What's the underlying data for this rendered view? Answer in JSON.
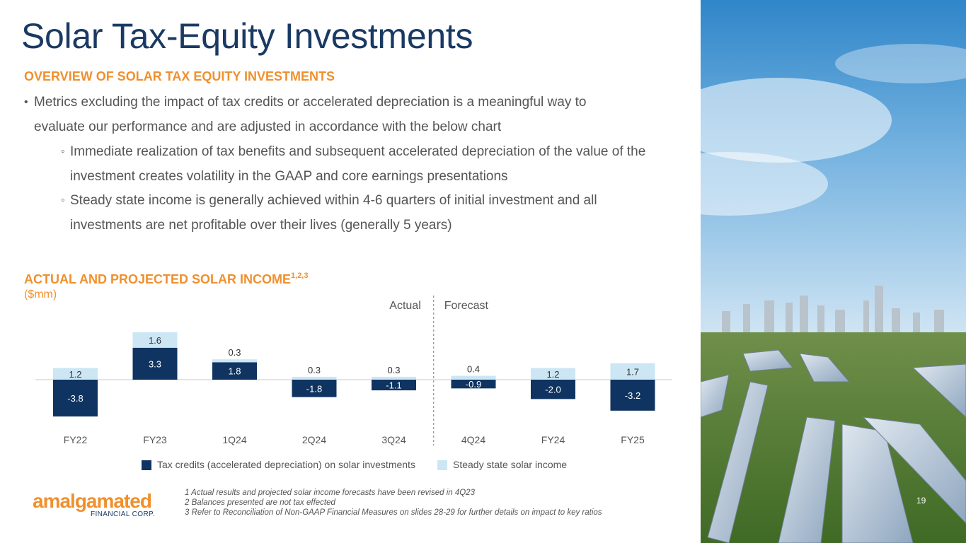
{
  "slide": {
    "title": "Solar Tax-Equity Investments",
    "page_number": "19"
  },
  "overview": {
    "heading": "OVERVIEW OF SOLAR TAX EQUITY INVESTMENTS",
    "bullet_marker": "•",
    "sub_marker": "◦",
    "bullets": [
      "Metrics excluding the impact of tax credits or accelerated depreciation is a meaningful way to evaluate our performance and are adjusted in accordance with the below chart",
      "Immediate realization of tax benefits and subsequent accelerated depreciation of the value of the investment creates volatility in the GAAP and core earnings presentations",
      "Steady state income is generally achieved within 4-6 quarters of initial investment and all investments are net profitable over their lives (generally 5 years)"
    ]
  },
  "chart_heading": {
    "title": "ACTUAL AND PROJECTED SOLAR INCOME",
    "superscript": "1,2,3",
    "units": "($mm)"
  },
  "chart_data": {
    "type": "bar",
    "title": "ACTUAL AND PROJECTED SOLAR INCOME",
    "units": "($mm)",
    "categories": [
      "FY22",
      "FY23",
      "1Q24",
      "2Q24",
      "3Q24",
      "4Q24",
      "FY24",
      "FY25"
    ],
    "series": [
      {
        "name": "Tax credits (accelerated depreciation) on solar investments",
        "color": "#0f3461",
        "values": [
          -3.8,
          3.3,
          1.8,
          -1.8,
          -1.1,
          -0.9,
          -2.0,
          -3.2
        ],
        "labels": [
          "-3.8",
          "3.3",
          "1.8",
          "-1.8",
          "-1.1",
          "-0.9",
          "-2.0",
          "-3.2"
        ]
      },
      {
        "name": "Steady state solar income",
        "color": "#cce6f4",
        "values": [
          1.2,
          1.6,
          0.3,
          0.3,
          0.3,
          0.4,
          1.2,
          1.7
        ],
        "labels": [
          "1.2",
          "1.6",
          "0.3",
          "0.3",
          "0.3",
          "0.4",
          "1.2",
          "1.7"
        ]
      }
    ],
    "annotations": {
      "actual": "Actual",
      "forecast": "Forecast"
    },
    "legend_position": "bottom",
    "grid": false
  },
  "logo": {
    "word": "amalgamated",
    "subtitle": "FINANCIAL CORP."
  },
  "footnotes": [
    "1 Actual results and projected solar income forecasts have been revised in 4Q23",
    "2 Balances presented are not tax effected",
    "3 Refer to Reconciliation of Non-GAAP Financial Measures on slides 28-29 for further details on impact to key ratios"
  ]
}
